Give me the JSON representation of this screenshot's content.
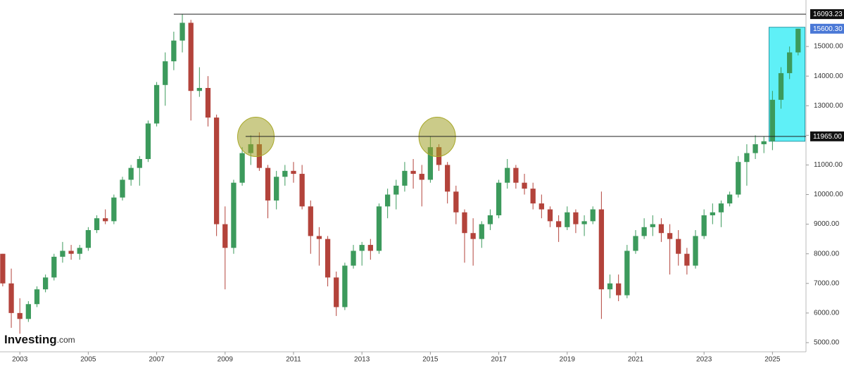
{
  "chart_data": {
    "type": "candlestick",
    "x": [
      2002.5,
      2002.75,
      2003,
      2003.25,
      2003.5,
      2003.75,
      2004,
      2004.25,
      2004.5,
      2004.75,
      2005,
      2005.25,
      2005.5,
      2005.75,
      2006,
      2006.25,
      2006.5,
      2006.75,
      2007,
      2007.25,
      2007.5,
      2007.75,
      2008,
      2008.25,
      2008.5,
      2008.75,
      2009,
      2009.25,
      2009.5,
      2009.75,
      2010,
      2010.25,
      2010.5,
      2010.75,
      2011,
      2011.25,
      2011.5,
      2011.75,
      2012,
      2012.25,
      2012.5,
      2012.75,
      2013,
      2013.25,
      2013.5,
      2013.75,
      2014,
      2014.25,
      2014.5,
      2014.75,
      2015,
      2015.25,
      2015.5,
      2015.75,
      2016,
      2016.25,
      2016.5,
      2016.75,
      2017,
      2017.25,
      2017.5,
      2017.75,
      2018,
      2018.25,
      2018.5,
      2018.75,
      2019,
      2019.25,
      2019.5,
      2019.75,
      2020,
      2020.25,
      2020.5,
      2020.75,
      2021,
      2021.25,
      2021.5,
      2021.75,
      2022,
      2022.25,
      2022.5,
      2022.75,
      2023,
      2023.25,
      2023.5,
      2023.75,
      2024,
      2024.25,
      2024.5,
      2024.75,
      2025,
      2025.25,
      2025.5,
      2025.75
    ],
    "open": [
      8000,
      7000,
      6000,
      5800,
      6300,
      6800,
      7200,
      7900,
      8100,
      8000,
      8200,
      8800,
      9200,
      9100,
      9900,
      10500,
      10900,
      11200,
      12400,
      13700,
      14500,
      15200,
      15800,
      13500,
      13600,
      12600,
      9000,
      8200,
      10400,
      11400,
      11700,
      10900,
      9800,
      10600,
      10800,
      10700,
      9600,
      8600,
      8500,
      7200,
      6200,
      7600,
      8100,
      8300,
      8100,
      9600,
      10000,
      10300,
      10800,
      10700,
      10500,
      11600,
      11000,
      10100,
      9400,
      8700,
      8500,
      9000,
      9300,
      10400,
      10900,
      10400,
      10200,
      9700,
      9500,
      9100,
      8900,
      9400,
      9000,
      9100,
      9500,
      6800,
      7000,
      6600,
      8100,
      8600,
      8900,
      9000,
      8700,
      8500,
      8000,
      7600,
      8600,
      9300,
      9400,
      9700,
      10000,
      11100,
      11400,
      11700,
      11800,
      13200,
      14100,
      14800
    ],
    "high": [
      8000,
      7500,
      6500,
      6400,
      6900,
      7300,
      8000,
      8400,
      8300,
      8300,
      8900,
      9300,
      9500,
      10000,
      10600,
      11000,
      11300,
      12500,
      13800,
      14800,
      15500,
      16093,
      15900,
      14300,
      14000,
      12700,
      9600,
      10500,
      11600,
      12000,
      12100,
      11000,
      10800,
      11000,
      11100,
      11000,
      9800,
      8900,
      8600,
      7400,
      7700,
      8300,
      8400,
      8500,
      9700,
      10200,
      10500,
      11100,
      11200,
      11000,
      11965,
      11700,
      11100,
      10300,
      9500,
      9200,
      9100,
      9500,
      10500,
      11200,
      11000,
      10700,
      10400,
      10000,
      9600,
      9300,
      9600,
      9500,
      9300,
      9600,
      10100,
      7300,
      7300,
      8300,
      8800,
      9200,
      9300,
      9200,
      9000,
      8800,
      8200,
      8800,
      9500,
      9700,
      9800,
      10100,
      11300,
      11700,
      12000,
      11965,
      13500,
      14300,
      15000,
      15600
    ],
    "low": [
      6900,
      5500,
      5300,
      5700,
      6200,
      6700,
      7100,
      7700,
      7800,
      7800,
      8100,
      8700,
      9000,
      9000,
      9800,
      10300,
      10300,
      11100,
      12300,
      13000,
      14200,
      14800,
      12500,
      13300,
      12300,
      8600,
      6800,
      8000,
      10300,
      11000,
      10800,
      9200,
      9500,
      10300,
      10400,
      9500,
      8000,
      7600,
      6900,
      5900,
      6100,
      7500,
      7600,
      7800,
      8000,
      9200,
      9500,
      10100,
      10200,
      9600,
      10400,
      10800,
      9700,
      9000,
      7700,
      7600,
      8200,
      8800,
      9200,
      10200,
      10200,
      10000,
      9500,
      9200,
      8900,
      8400,
      8800,
      8700,
      8600,
      9000,
      5800,
      6500,
      6400,
      6500,
      8000,
      8500,
      8600,
      8400,
      7300,
      7600,
      7300,
      7500,
      8500,
      9000,
      8900,
      9600,
      9900,
      10300,
      11200,
      11400,
      11500,
      12900,
      13900,
      14700
    ],
    "close": [
      7000,
      6000,
      5800,
      6300,
      6800,
      7200,
      7900,
      8100,
      8000,
      8200,
      8800,
      9200,
      9100,
      9900,
      10500,
      10900,
      11200,
      12400,
      13700,
      14500,
      15200,
      15800,
      13500,
      13600,
      12600,
      9000,
      8200,
      10400,
      11400,
      11700,
      10900,
      9800,
      10600,
      10800,
      10700,
      9600,
      8600,
      8500,
      7200,
      6200,
      7600,
      8100,
      8300,
      8100,
      9600,
      10000,
      10300,
      10800,
      10700,
      10500,
      11600,
      11000,
      10100,
      9400,
      8700,
      8500,
      9000,
      9300,
      10400,
      10900,
      10400,
      10200,
      9700,
      9500,
      9100,
      8900,
      9400,
      9000,
      9100,
      9500,
      6800,
      7000,
      6600,
      8100,
      8600,
      8900,
      9000,
      8700,
      8500,
      8000,
      7600,
      8600,
      9300,
      9400,
      9700,
      10000,
      11100,
      11400,
      11700,
      11800,
      13200,
      14100,
      14800,
      15600.3
    ],
    "up_color": "#3c9a5c",
    "down_color": "#b3433b",
    "xlim": [
      2002.42,
      2025.98
    ],
    "ylim": [
      4690,
      16570
    ],
    "xticks": [
      2003,
      2005,
      2007,
      2009,
      2011,
      2013,
      2015,
      2017,
      2019,
      2021,
      2023,
      2025
    ],
    "yticks": [
      {
        "value": 5000,
        "label": "5000.00"
      },
      {
        "value": 6000,
        "label": "6000.00"
      },
      {
        "value": 7000,
        "label": "7000.00"
      },
      {
        "value": 8000,
        "label": "8000.00"
      },
      {
        "value": 9000,
        "label": "9000.00"
      },
      {
        "value": 10000,
        "label": "10000.00"
      },
      {
        "value": 11000,
        "label": "11000.00"
      },
      {
        "value": 12000,
        "label": "12000.00"
      },
      {
        "value": 13000,
        "label": "13000.00"
      },
      {
        "value": 14000,
        "label": "14000.00"
      },
      {
        "value": 15000,
        "label": "15000.00"
      }
    ],
    "levels": [
      {
        "value": 16093.23,
        "label": "16093.23",
        "start": 2007.5
      },
      {
        "value": 11965,
        "label": "11965.00",
        "start": 2009.6
      }
    ],
    "last_price": {
      "value": 15600.3,
      "label": "15600.30",
      "color": "#4a78d6"
    },
    "circles": [
      {
        "x": 2009.9,
        "y": 11950
      },
      {
        "x": 2015.2,
        "y": 11950
      }
    ],
    "highlight": {
      "x": [
        2024.9,
        2025.95
      ],
      "y": [
        11800,
        15650
      ],
      "color": "#5ff0f7"
    },
    "brand": "Investing",
    "brand_suffix": ".com"
  }
}
